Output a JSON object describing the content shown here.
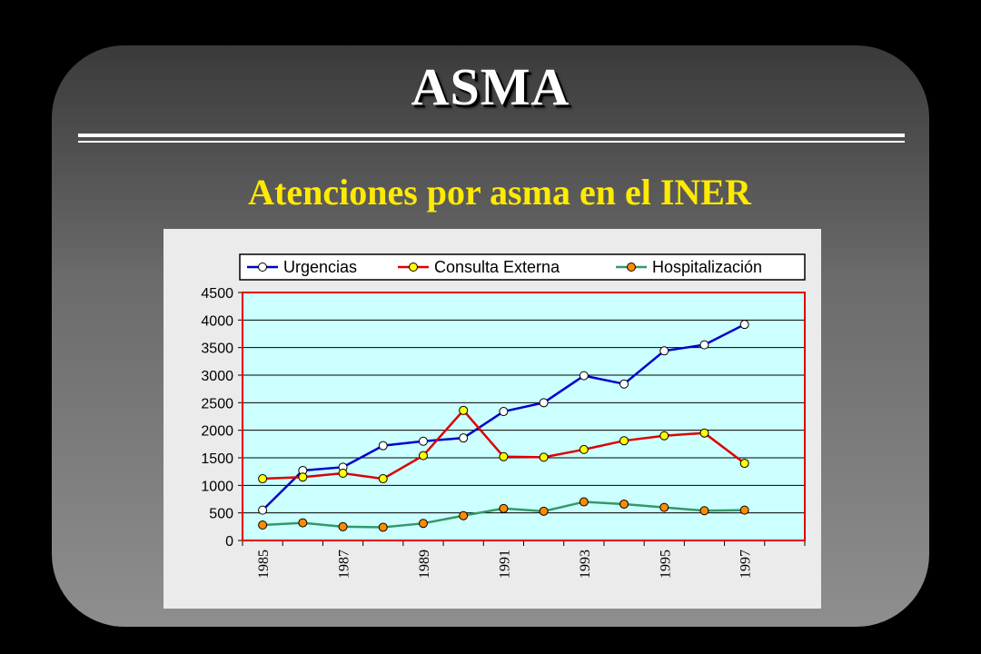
{
  "slide": {
    "title": "ASMA",
    "subtitle": "Atenciones por asma en el INER"
  },
  "colors": {
    "background": "#000000",
    "title": "#ffffff",
    "subtitle": "#ffea00",
    "plot_background": "#ccffff",
    "plot_border": "#e00000",
    "legend_border": "#000000"
  },
  "chart_data": {
    "type": "line",
    "title": "",
    "xlabel": "",
    "ylabel": "",
    "x": [
      1985,
      1986,
      1987,
      1988,
      1989,
      1990,
      1991,
      1992,
      1993,
      1994,
      1995,
      1996,
      1997
    ],
    "x_tick_labels": [
      "1985",
      "1987",
      "1989",
      "1991",
      "1993",
      "1995",
      "1997"
    ],
    "y_ticks": [
      0,
      500,
      1000,
      1500,
      2000,
      2500,
      3000,
      3500,
      4000,
      4500
    ],
    "ylim": [
      0,
      4500
    ],
    "grid": "horizontal",
    "legend_position": "top",
    "series": [
      {
        "name": "Urgencias",
        "line_color": "#0000cc",
        "marker_color": "#ffffff",
        "values": [
          550,
          1270,
          1330,
          1720,
          1800,
          1860,
          2340,
          2500,
          2990,
          2840,
          3440,
          3550,
          3920
        ]
      },
      {
        "name": "Consulta Externa",
        "line_color": "#dd0000",
        "marker_color": "#ffff00",
        "values": [
          1120,
          1150,
          1220,
          1120,
          1540,
          2360,
          1520,
          1510,
          1650,
          1810,
          1900,
          1950,
          1400
        ]
      },
      {
        "name": "Hospitalización",
        "line_color": "#339966",
        "marker_color": "#ff8c00",
        "values": [
          280,
          320,
          250,
          240,
          310,
          450,
          580,
          530,
          700,
          660,
          600,
          540,
          550
        ]
      }
    ]
  }
}
